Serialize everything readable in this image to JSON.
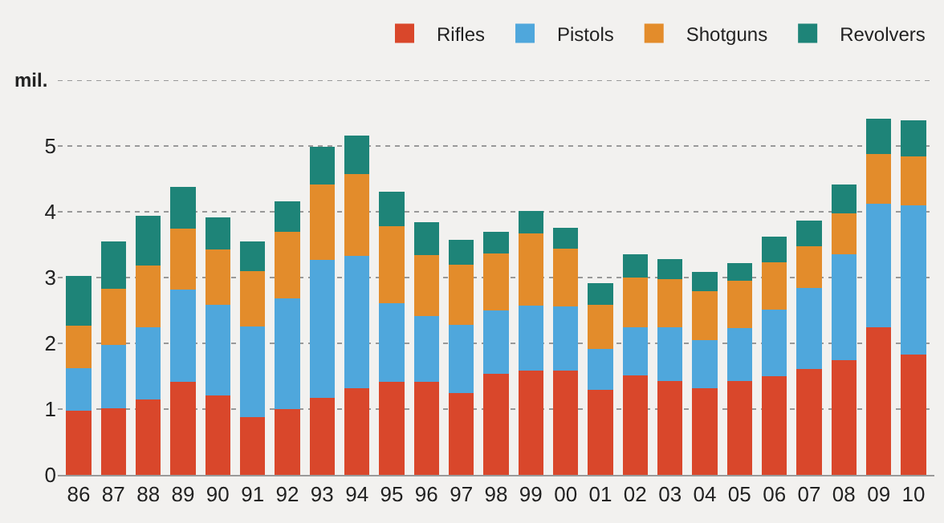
{
  "chart_data": {
    "type": "bar",
    "stacked": true,
    "ylabel": "mil.",
    "categories": [
      "86",
      "87",
      "88",
      "89",
      "90",
      "91",
      "92",
      "93",
      "94",
      "95",
      "96",
      "97",
      "98",
      "99",
      "00",
      "01",
      "02",
      "03",
      "04",
      "05",
      "06",
      "07",
      "08",
      "09",
      "10"
    ],
    "series": [
      {
        "name": "Rifles",
        "color": "#d9472b",
        "values": [
          0.97,
          1.01,
          1.15,
          1.41,
          1.21,
          0.88,
          1.0,
          1.17,
          1.32,
          1.41,
          1.41,
          1.25,
          1.54,
          1.58,
          1.58,
          1.29,
          1.51,
          1.43,
          1.32,
          1.43,
          1.5,
          1.61,
          1.74,
          2.25,
          1.83
        ]
      },
      {
        "name": "Pistols",
        "color": "#4fa7dc",
        "values": [
          0.65,
          0.96,
          1.1,
          1.41,
          1.37,
          1.38,
          1.68,
          2.1,
          2.01,
          1.2,
          1.0,
          1.03,
          0.96,
          0.99,
          0.98,
          0.63,
          0.74,
          0.82,
          0.73,
          0.8,
          1.01,
          1.23,
          1.61,
          1.87,
          2.27
        ]
      },
      {
        "name": "Shotguns",
        "color": "#e38c2b",
        "values": [
          0.65,
          0.86,
          0.93,
          0.93,
          0.85,
          0.84,
          1.01,
          1.14,
          1.24,
          1.17,
          0.93,
          0.92,
          0.86,
          1.1,
          0.88,
          0.67,
          0.75,
          0.72,
          0.74,
          0.72,
          0.72,
          0.64,
          0.63,
          0.76,
          0.74
        ]
      },
      {
        "name": "Revolvers",
        "color": "#1e8478",
        "values": [
          0.76,
          0.72,
          0.76,
          0.63,
          0.48,
          0.45,
          0.47,
          0.58,
          0.59,
          0.53,
          0.5,
          0.37,
          0.33,
          0.34,
          0.32,
          0.33,
          0.35,
          0.31,
          0.29,
          0.27,
          0.39,
          0.39,
          0.43,
          0.54,
          0.55
        ]
      }
    ],
    "ylim": [
      0,
      6
    ],
    "yticks": [
      0,
      1,
      2,
      3,
      4,
      5,
      {
        "value": 6,
        "label": null
      }
    ],
    "grid": "y",
    "legend": "top right"
  }
}
